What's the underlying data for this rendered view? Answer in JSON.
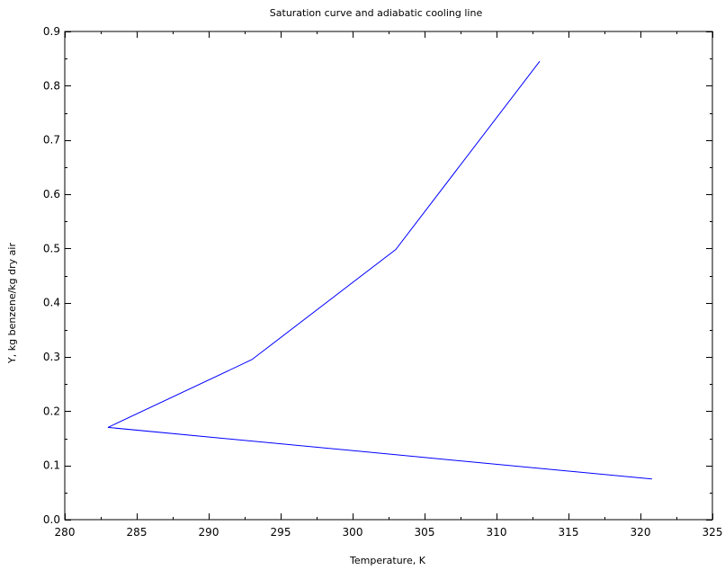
{
  "chart_data": {
    "type": "line",
    "title": "Saturation curve and adiabatic cooling line",
    "xlabel": "Temperature, K",
    "ylabel": "Y, kg benzene/kg dry air",
    "xlim": [
      280,
      325
    ],
    "ylim": [
      0.0,
      0.9
    ],
    "grid": false,
    "legend": "none",
    "x_ticks": [
      "280",
      "285",
      "290",
      "295",
      "300",
      "305",
      "310",
      "315",
      "320",
      "325"
    ],
    "y_ticks": [
      "0.0",
      "0.1",
      "0.2",
      "0.3",
      "0.4",
      "0.5",
      "0.6",
      "0.7",
      "0.8",
      "0.9"
    ],
    "series": [
      {
        "color": "#0000ff",
        "x": [
          283,
          293,
          303,
          313
        ],
        "y": [
          0.17,
          0.295,
          0.498,
          0.845
        ]
      },
      {
        "color": "#0000ff",
        "x": [
          283,
          320.8
        ],
        "y": [
          0.17,
          0.075
        ]
      }
    ]
  }
}
